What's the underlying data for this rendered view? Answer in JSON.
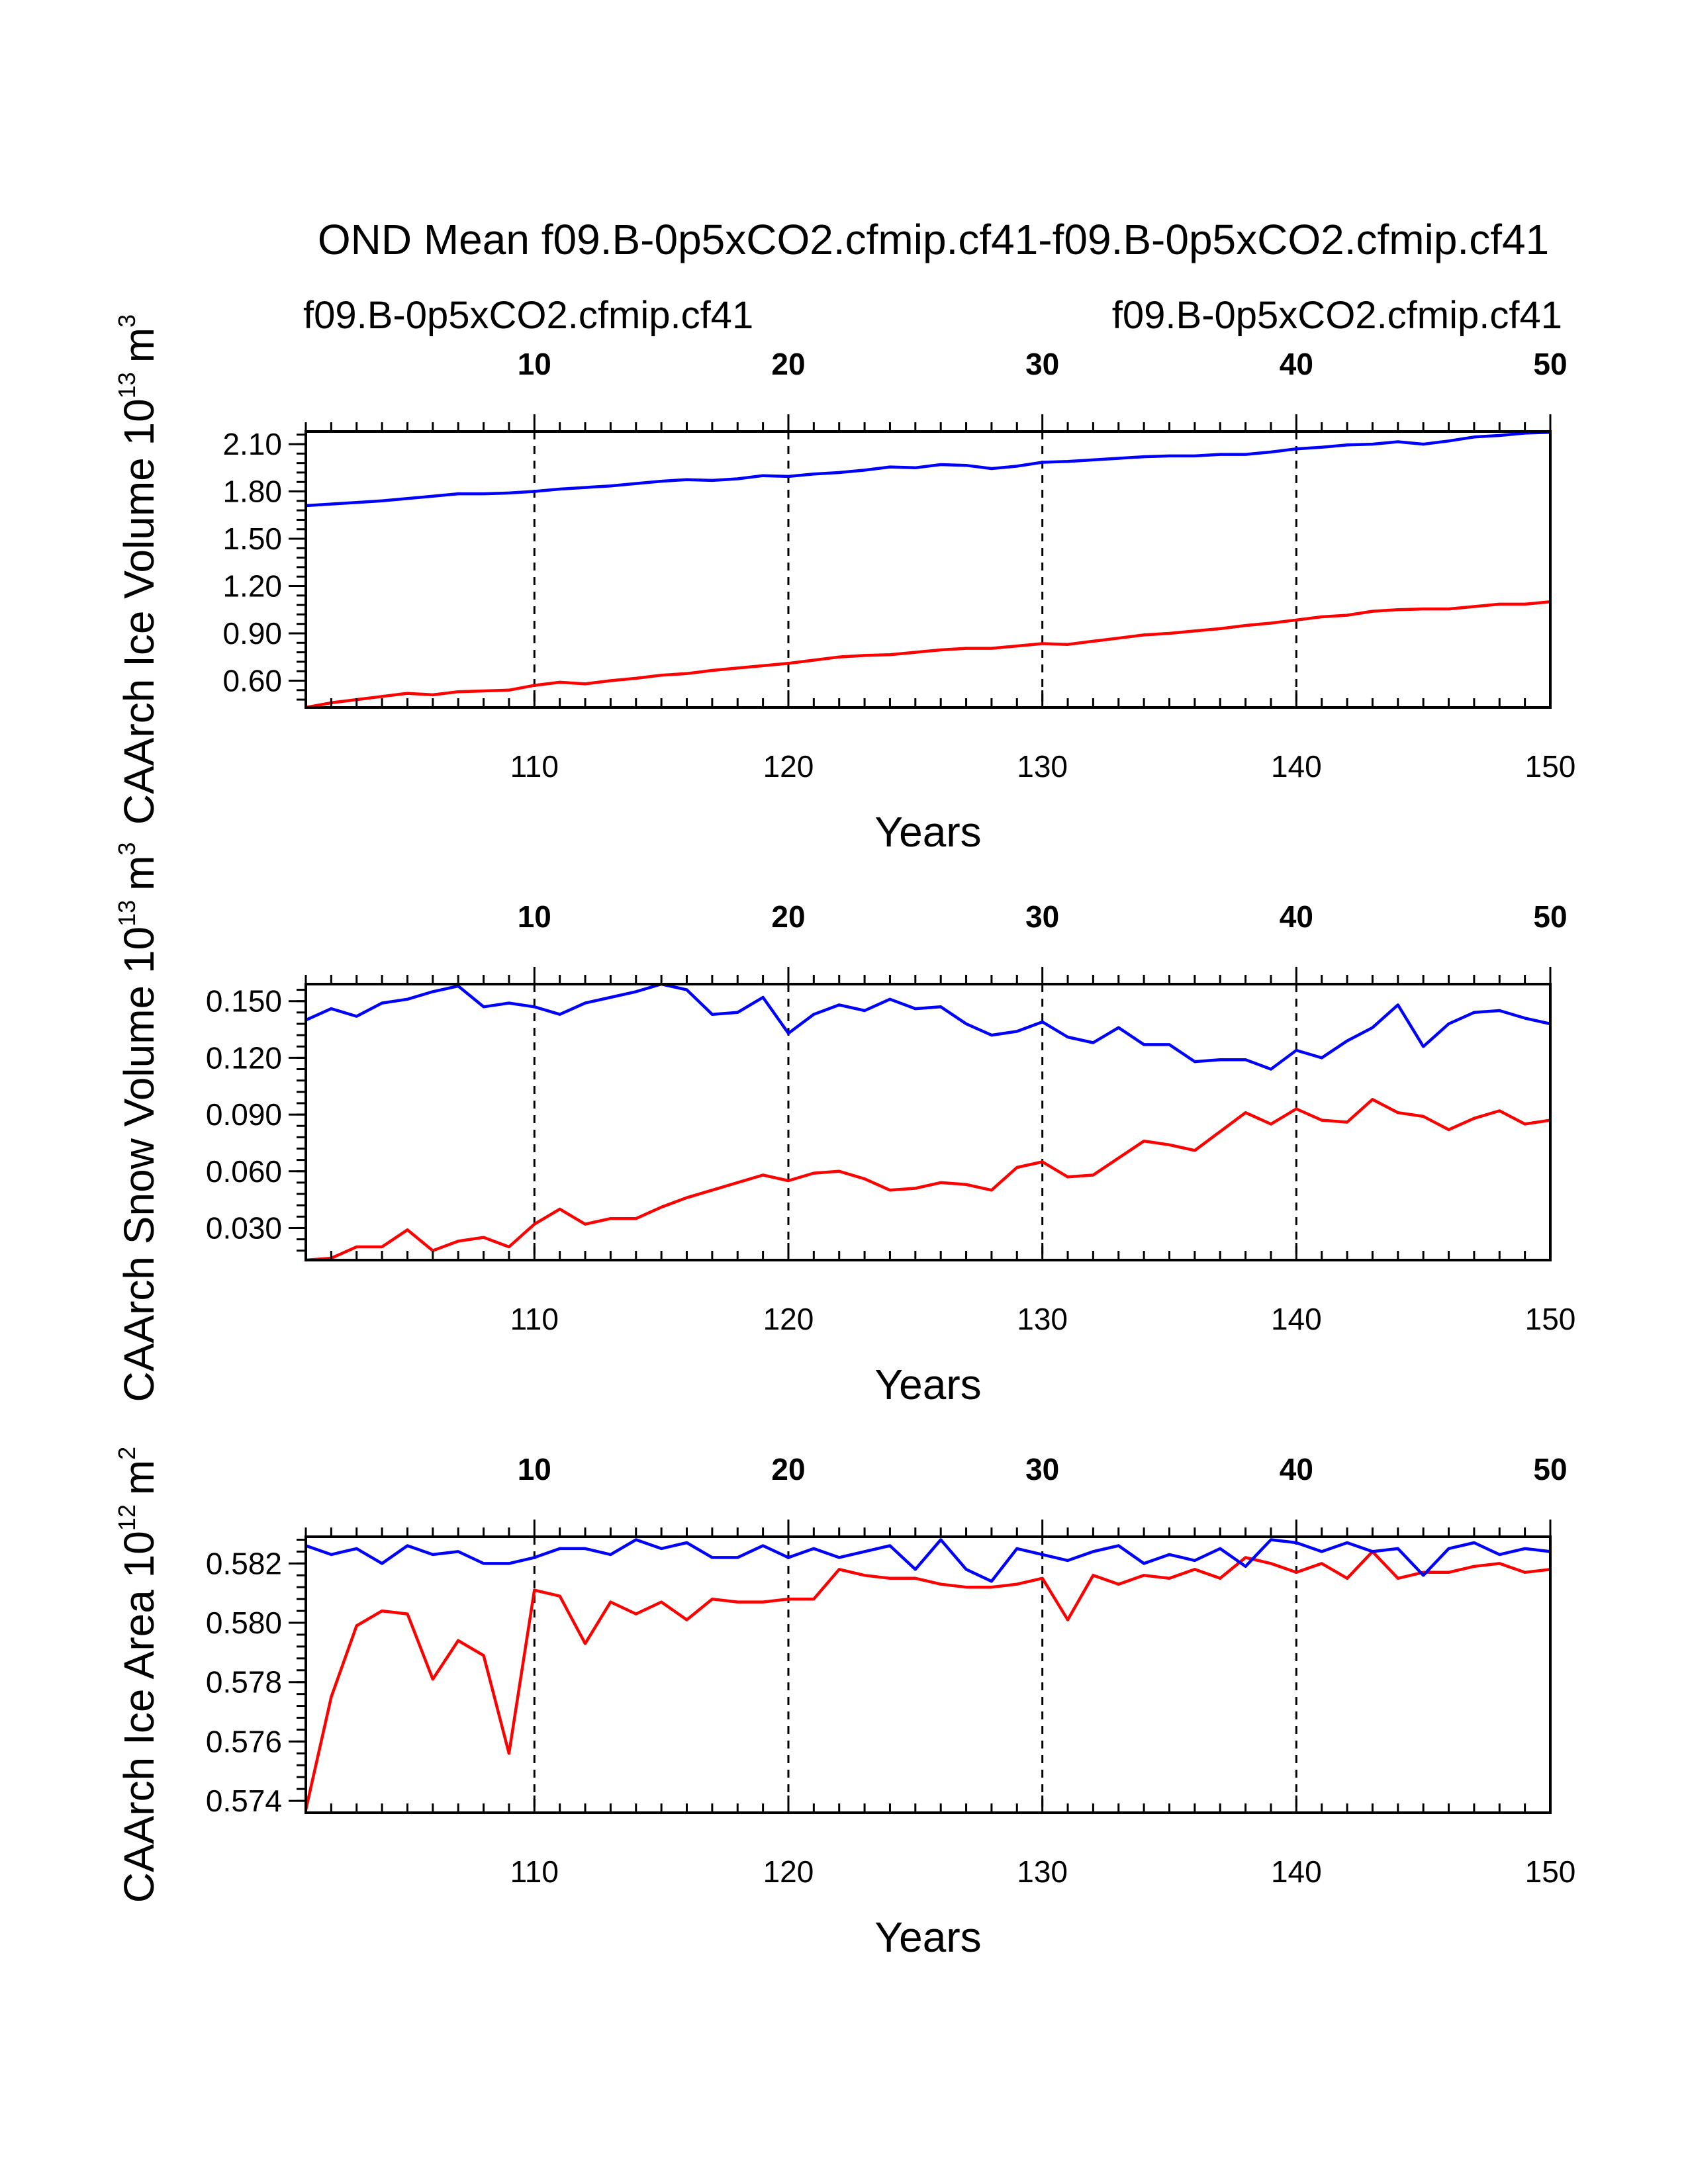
{
  "title": "OND Mean f09.B-0p5xCO2.cfmip.cf41-f09.B-0p5xCO2.cfmip.cf41",
  "legend": {
    "left": {
      "label": "f09.B-0p5xCO2.cfmip.cf41",
      "color": "#ff0000"
    },
    "right": {
      "label": "f09.B-0p5xCO2.cfmip.cf41",
      "color": "#0000ff"
    }
  },
  "colors": {
    "series_a": "#ff0000",
    "series_b": "#0000ff",
    "axis": "#000000"
  },
  "chart_data": [
    {
      "type": "line",
      "ylabel": "CAArch Ice Volume 10",
      "ylabel_exp": "13",
      "ylabel_unit": "m",
      "ylabel_unit_exp": "3",
      "xlabel": "Years",
      "xlim": [
        101,
        150
      ],
      "ylim": [
        0.43,
        2.18
      ],
      "yticks": [
        "2.10",
        "1.80",
        "1.50",
        "1.20",
        "0.90",
        "0.60"
      ],
      "ytick_values": [
        2.1,
        1.8,
        1.5,
        1.2,
        0.9,
        0.6
      ],
      "yminor_step": 0.06,
      "xticks_bottom": [
        "110",
        "120",
        "130",
        "140",
        "150"
      ],
      "xticks_top": [
        "10",
        "20",
        "30",
        "40",
        "50"
      ],
      "x_start": 101,
      "series": [
        {
          "name": "f09.B-0p5xCO2.cfmip.cf41",
          "color": "#ff0000",
          "values": [
            0.43,
            0.46,
            0.48,
            0.5,
            0.52,
            0.51,
            0.53,
            0.535,
            0.54,
            0.57,
            0.59,
            0.58,
            0.6,
            0.615,
            0.635,
            0.645,
            0.665,
            0.68,
            0.695,
            0.71,
            0.73,
            0.75,
            0.76,
            0.765,
            0.78,
            0.795,
            0.805,
            0.805,
            0.82,
            0.835,
            0.83,
            0.85,
            0.87,
            0.89,
            0.9,
            0.915,
            0.93,
            0.95,
            0.965,
            0.985,
            1.005,
            1.015,
            1.04,
            1.05,
            1.055,
            1.055,
            1.07,
            1.085,
            1.085,
            1.1
          ]
        },
        {
          "name": "f09.B-0p5xCO2.cfmip.cf41",
          "color": "#0000ff",
          "values": [
            1.71,
            1.72,
            1.73,
            1.74,
            1.755,
            1.77,
            1.785,
            1.785,
            1.79,
            1.8,
            1.815,
            1.825,
            1.835,
            1.85,
            1.865,
            1.875,
            1.87,
            1.88,
            1.9,
            1.895,
            1.91,
            1.92,
            1.935,
            1.955,
            1.95,
            1.97,
            1.965,
            1.945,
            1.96,
            1.985,
            1.99,
            2.0,
            2.01,
            2.02,
            2.025,
            2.025,
            2.035,
            2.035,
            2.05,
            2.07,
            2.08,
            2.095,
            2.1,
            2.115,
            2.1,
            2.12,
            2.145,
            2.155,
            2.17,
            2.175
          ]
        }
      ]
    },
    {
      "type": "line",
      "ylabel": "CAArch Snow Volume 10",
      "ylabel_exp": "13",
      "ylabel_unit": "m",
      "ylabel_unit_exp": "3",
      "xlabel": "Years",
      "xlim": [
        101,
        150
      ],
      "ylim": [
        0.013,
        0.159
      ],
      "yticks": [
        "0.150",
        "0.120",
        "0.090",
        "0.060",
        "0.030"
      ],
      "ytick_values": [
        0.15,
        0.12,
        0.09,
        0.06,
        0.03
      ],
      "yminor_step": 0.006,
      "xticks_bottom": [
        "110",
        "120",
        "130",
        "140",
        "150"
      ],
      "xticks_top": [
        "10",
        "20",
        "30",
        "40",
        "50"
      ],
      "x_start": 101,
      "series": [
        {
          "name": "f09.B-0p5xCO2.cfmip.cf41",
          "color": "#ff0000",
          "values": [
            0.013,
            0.014,
            0.02,
            0.02,
            0.029,
            0.018,
            0.023,
            0.025,
            0.02,
            0.032,
            0.04,
            0.032,
            0.035,
            0.035,
            0.041,
            0.046,
            0.05,
            0.054,
            0.058,
            0.055,
            0.059,
            0.06,
            0.056,
            0.05,
            0.051,
            0.054,
            0.053,
            0.05,
            0.062,
            0.065,
            0.057,
            0.058,
            0.067,
            0.076,
            0.074,
            0.071,
            0.081,
            0.091,
            0.085,
            0.093,
            0.087,
            0.086,
            0.098,
            0.091,
            0.089,
            0.082,
            0.088,
            0.092,
            0.085,
            0.087
          ]
        },
        {
          "name": "f09.B-0p5xCO2.cfmip.cf41",
          "color": "#0000ff",
          "values": [
            0.14,
            0.146,
            0.142,
            0.149,
            0.151,
            0.155,
            0.158,
            0.147,
            0.149,
            0.147,
            0.143,
            0.149,
            0.152,
            0.155,
            0.159,
            0.156,
            0.143,
            0.144,
            0.152,
            0.133,
            0.143,
            0.148,
            0.145,
            0.151,
            0.146,
            0.147,
            0.138,
            0.132,
            0.134,
            0.139,
            0.131,
            0.128,
            0.136,
            0.127,
            0.127,
            0.118,
            0.119,
            0.119,
            0.114,
            0.124,
            0.12,
            0.129,
            0.136,
            0.148,
            0.126,
            0.138,
            0.144,
            0.145,
            0.141,
            0.138
          ]
        }
      ]
    },
    {
      "type": "line",
      "ylabel": "CAArch Ice Area 10",
      "ylabel_exp": "12",
      "ylabel_unit": "m",
      "ylabel_unit_exp": "2",
      "xlabel": "Years",
      "xlim": [
        101,
        150
      ],
      "ylim": [
        0.5736,
        0.5829
      ],
      "yticks": [
        "0.582",
        "0.580",
        "0.578",
        "0.576",
        "0.574"
      ],
      "ytick_values": [
        0.582,
        0.58,
        0.578,
        0.576,
        0.574
      ],
      "yminor_step": 0.0004,
      "xticks_bottom": [
        "110",
        "120",
        "130",
        "140",
        "150"
      ],
      "xticks_top": [
        "10",
        "20",
        "30",
        "40",
        "50"
      ],
      "x_start": 101,
      "series": [
        {
          "name": "f09.B-0p5xCO2.cfmip.cf41",
          "color": "#ff0000",
          "values": [
            0.5737,
            0.5775,
            0.5799,
            0.5804,
            0.5803,
            0.5781,
            0.5794,
            0.5789,
            0.5756,
            0.5811,
            0.5809,
            0.5793,
            0.5807,
            0.5803,
            0.5807,
            0.5801,
            0.5808,
            0.5807,
            0.5807,
            0.5808,
            0.5808,
            0.5818,
            0.5816,
            0.5815,
            0.5815,
            0.5813,
            0.5812,
            0.5812,
            0.5813,
            0.5815,
            0.5801,
            0.5816,
            0.5813,
            0.5816,
            0.5815,
            0.5818,
            0.5815,
            0.5822,
            0.582,
            0.5817,
            0.582,
            0.5815,
            0.5824,
            0.5815,
            0.5817,
            0.5817,
            0.5819,
            0.582,
            0.5817,
            0.5818
          ]
        },
        {
          "name": "f09.B-0p5xCO2.cfmip.cf41",
          "color": "#0000ff",
          "values": [
            0.5826,
            0.5823,
            0.5825,
            0.582,
            0.5826,
            0.5823,
            0.5824,
            0.582,
            0.582,
            0.5822,
            0.5825,
            0.5825,
            0.5823,
            0.5828,
            0.5825,
            0.5827,
            0.5822,
            0.5822,
            0.5826,
            0.5822,
            0.5825,
            0.5822,
            0.5824,
            0.5826,
            0.5818,
            0.5828,
            0.5818,
            0.5814,
            0.5825,
            0.5823,
            0.5821,
            0.5824,
            0.5826,
            0.582,
            0.5823,
            0.5821,
            0.5825,
            0.5819,
            0.5828,
            0.5827,
            0.5824,
            0.5827,
            0.5824,
            0.5825,
            0.5816,
            0.5825,
            0.5827,
            0.5823,
            0.5825,
            0.5824
          ]
        }
      ]
    }
  ]
}
